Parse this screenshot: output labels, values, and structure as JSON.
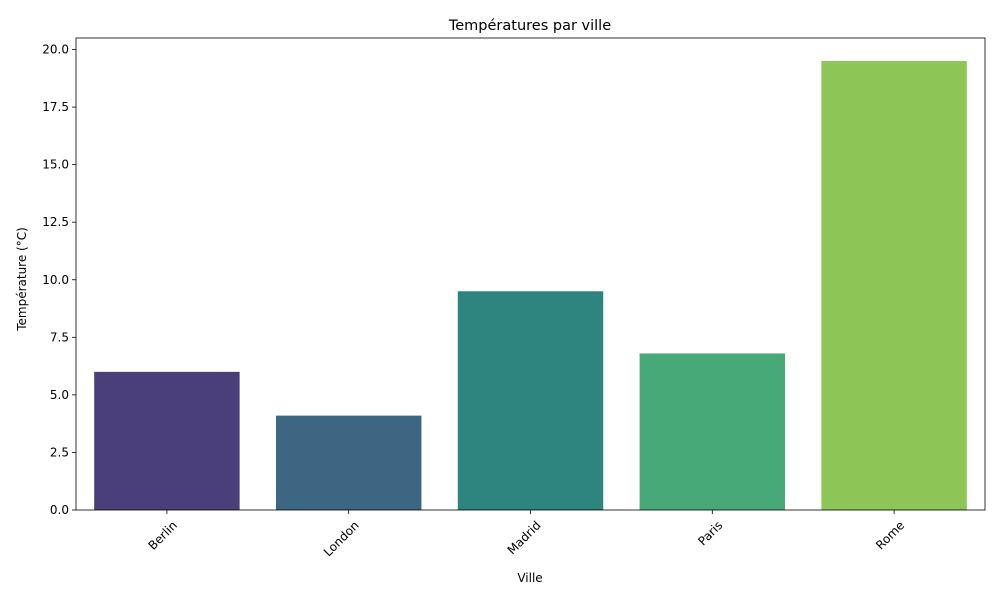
{
  "chart_data": {
    "type": "bar",
    "title": "Températures par ville",
    "xlabel": "Ville",
    "ylabel": "Température (°C)",
    "categories": [
      "Berlin",
      "London",
      "Madrid",
      "Paris",
      "Rome"
    ],
    "values": [
      6.0,
      4.1,
      9.5,
      6.8,
      19.5
    ],
    "colors": [
      "#4a3f7a",
      "#3d6682",
      "#2e847f",
      "#47a978",
      "#8dc556"
    ],
    "ylim": [
      0,
      20.5
    ],
    "yticks": [
      0.0,
      2.5,
      5.0,
      7.5,
      10.0,
      12.5,
      15.0,
      17.5,
      20.0
    ],
    "ytick_labels": [
      "0.0",
      "2.5",
      "5.0",
      "7.5",
      "10.0",
      "12.5",
      "15.0",
      "17.5",
      "20.0"
    ],
    "grid": false,
    "legend": "none"
  }
}
